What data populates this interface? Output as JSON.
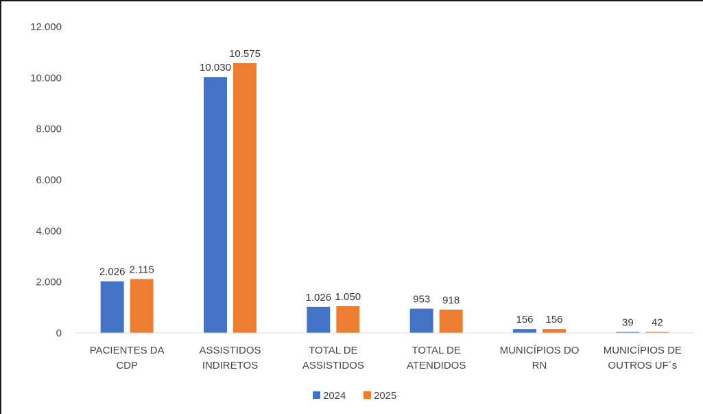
{
  "chart_data": {
    "type": "bar",
    "categories": [
      [
        "PACIENTES DA",
        "CDP"
      ],
      [
        "ASSISTIDOS",
        "INDIRETOS"
      ],
      [
        "TOTAL DE",
        "ASSISTIDOS"
      ],
      [
        "TOTAL DE",
        "ATENDIDOS"
      ],
      [
        "MUNICÍPIOS DO",
        "RN"
      ],
      [
        "MUNICÍPIOS DE",
        "OUTROS UF´s"
      ]
    ],
    "series": [
      {
        "name": "2024",
        "color": "#4472C4",
        "values": [
          2026,
          10030,
          1026,
          953,
          156,
          39
        ],
        "labels": [
          "2.026",
          "10.030",
          "1.026",
          "953",
          "156",
          "39"
        ]
      },
      {
        "name": "2025",
        "color": "#ED7D31",
        "values": [
          2115,
          10575,
          1050,
          918,
          156,
          42
        ],
        "labels": [
          "2.115",
          "10.575",
          "1.050",
          "918",
          "156",
          "42"
        ]
      }
    ],
    "ylim": [
      0,
      12000
    ],
    "yticks": [
      0,
      2000,
      4000,
      6000,
      8000,
      10000,
      12000
    ],
    "ytick_labels": [
      "0",
      "2.000",
      "4.000",
      "6.000",
      "8.000",
      "10.000",
      "12.000"
    ],
    "baseline_color": "#D9D9D9",
    "gridlines": false,
    "legend_position": "bottom"
  }
}
